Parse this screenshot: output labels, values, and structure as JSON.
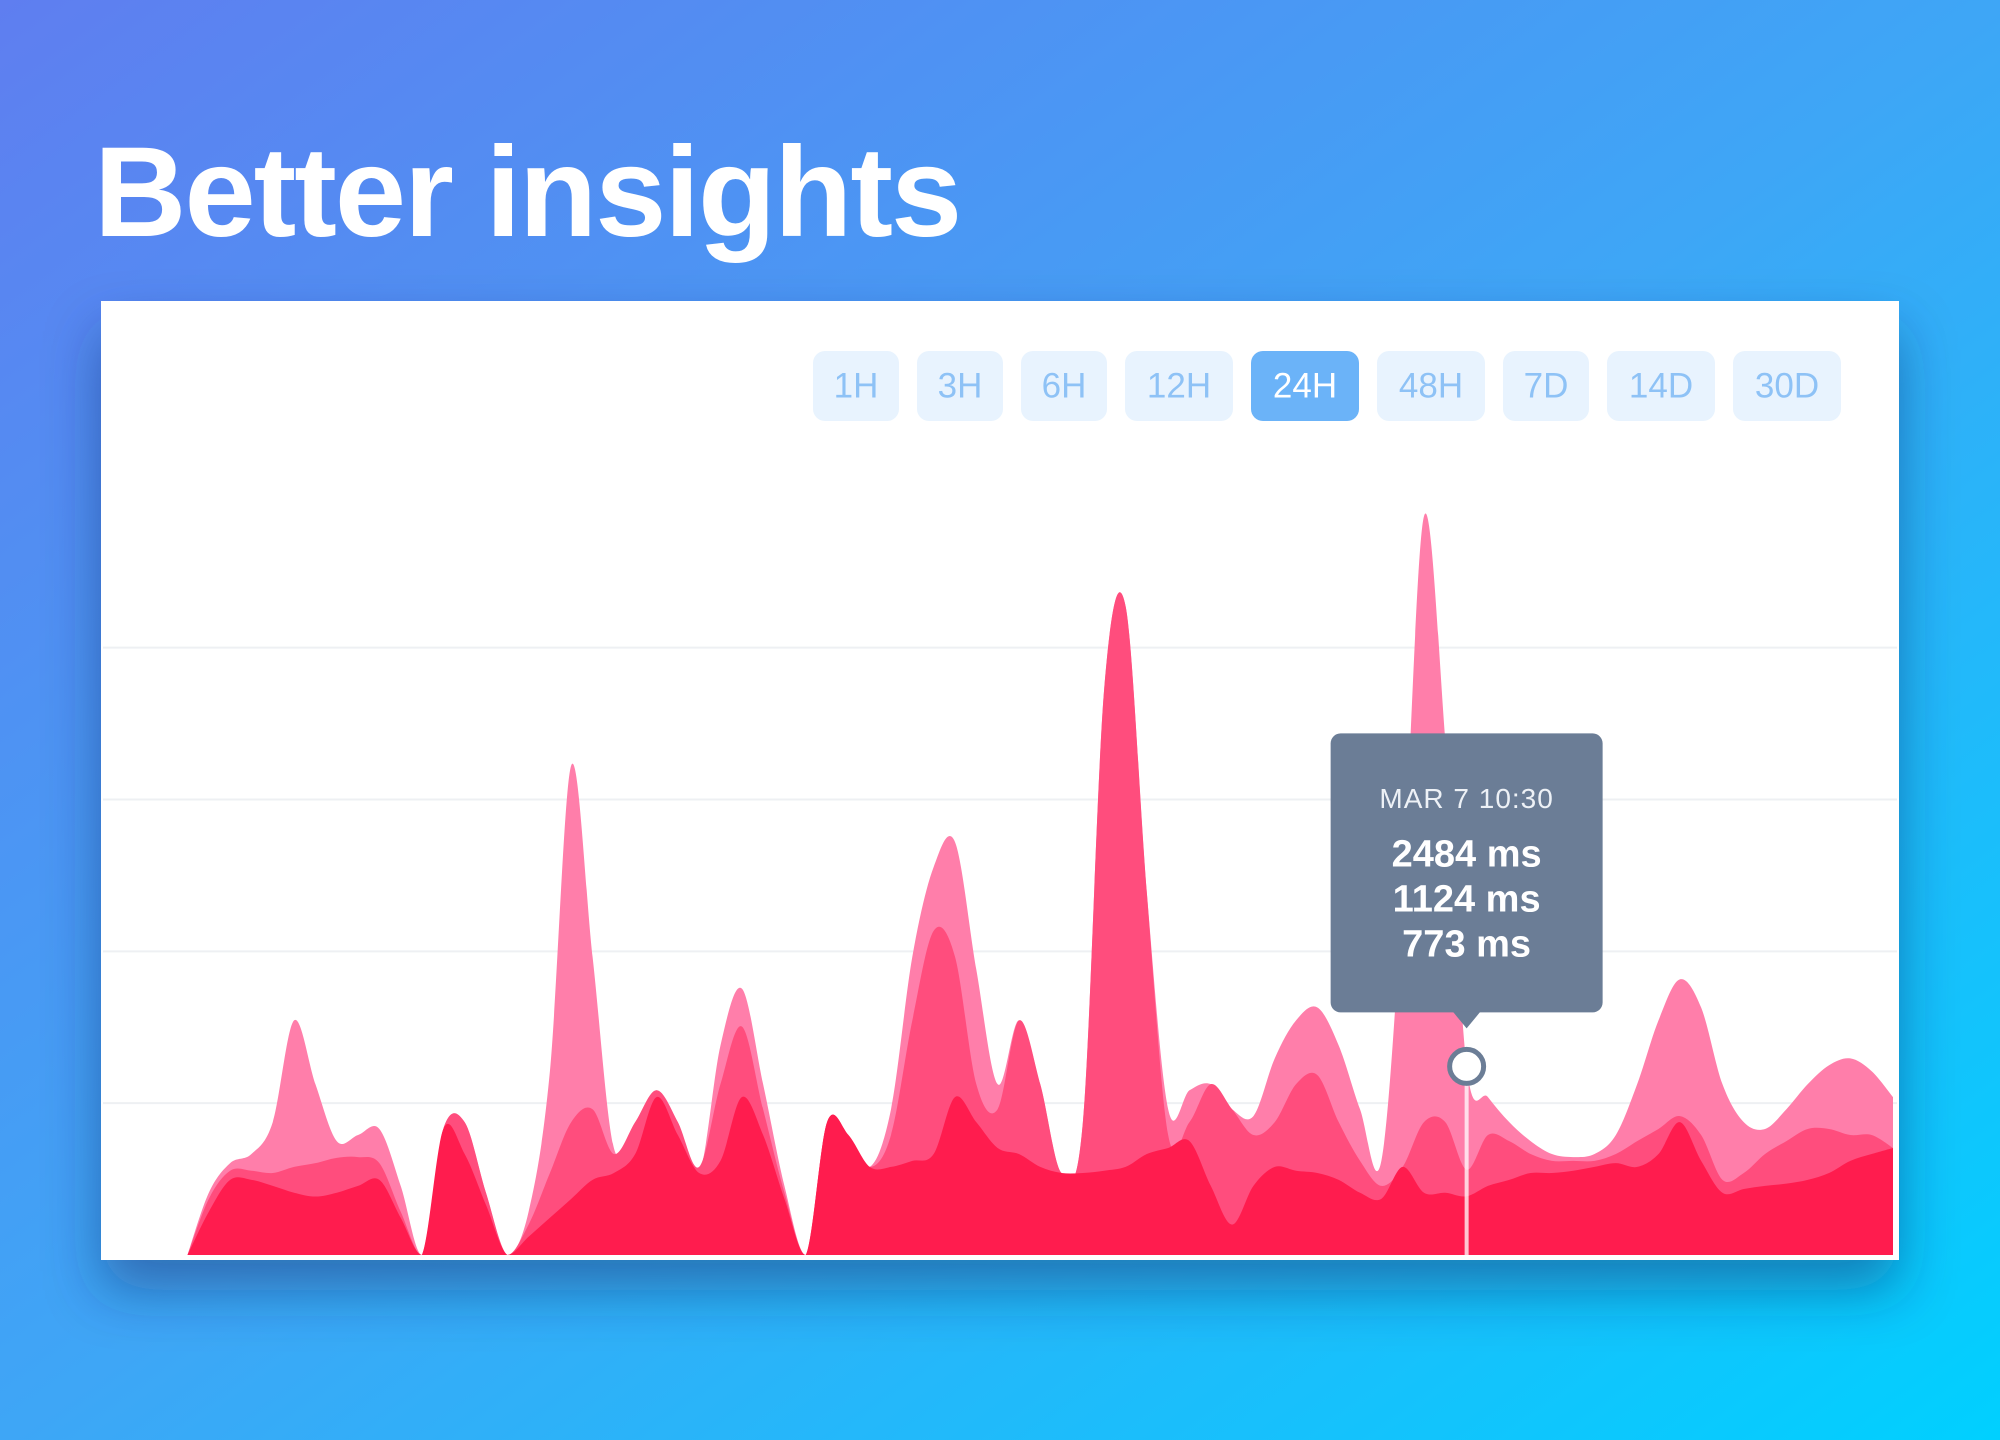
{
  "header": {
    "title": "Better insights"
  },
  "range_buttons": [
    {
      "label": "1H",
      "active": false
    },
    {
      "label": "3H",
      "active": false
    },
    {
      "label": "6H",
      "active": false
    },
    {
      "label": "12H",
      "active": false
    },
    {
      "label": "24H",
      "active": true
    },
    {
      "label": "48H",
      "active": false
    },
    {
      "label": "7D",
      "active": false
    },
    {
      "label": "14D",
      "active": false
    },
    {
      "label": "30D",
      "active": false
    }
  ],
  "chart_data": {
    "type": "area",
    "categories": [
      null,
      null,
      null,
      null,
      null,
      null,
      null,
      null,
      null,
      null,
      null,
      null,
      null,
      null,
      null,
      null,
      null,
      null,
      null,
      null,
      null,
      null,
      null,
      null,
      null,
      null,
      null,
      null,
      null,
      null,
      null,
      null,
      null,
      null,
      null,
      null,
      null,
      null,
      null,
      null,
      null,
      null,
      null,
      null,
      null,
      null,
      null,
      null,
      null,
      null,
      null,
      null,
      null,
      null,
      null,
      null,
      null,
      null,
      null,
      null,
      "MAR 7 10:30",
      null,
      null,
      null,
      null,
      null,
      null,
      null,
      null,
      null,
      null,
      null,
      null,
      null,
      null,
      null,
      null,
      null,
      null,
      null,
      null
    ],
    "ylim": [
      0,
      10000
    ],
    "yticks": [
      2000,
      4000,
      6000,
      8000
    ],
    "grid": true,
    "series": [
      {
        "color": "#ff7eaa",
        "values": [
          0,
          820,
          1210,
          1330,
          1750,
          3090,
          2250,
          1500,
          1580,
          1660,
          910,
          0,
          1660,
          1750,
          820,
          0,
          570,
          2420,
          6450,
          3930,
          1410,
          1750,
          2170,
          1750,
          1080,
          2760,
          3510,
          2250,
          910,
          0,
          1750,
          1580,
          1160,
          1920,
          3930,
          5110,
          5440,
          3760,
          2250,
          3090,
          2250,
          1080,
          1750,
          7460,
          8550,
          4770,
          1920,
          2170,
          2250,
          1920,
          1830,
          2590,
          3090,
          3260,
          2760,
          1920,
          1240,
          4770,
          9730,
          6790,
          2484,
          2080,
          1750,
          1500,
          1330,
          1290,
          1330,
          1580,
          2250,
          3090,
          3630,
          3260,
          2250,
          1750,
          1660,
          1920,
          2250,
          2500,
          2590,
          2420,
          2080
        ],
        "value_labels": [
          null,
          null,
          null,
          null,
          null,
          null,
          null,
          null,
          null,
          null,
          null,
          null,
          null,
          null,
          null,
          null,
          null,
          null,
          null,
          null,
          null,
          null,
          null,
          null,
          null,
          null,
          null,
          null,
          null,
          null,
          null,
          null,
          null,
          null,
          null,
          null,
          null,
          null,
          null,
          null,
          null,
          null,
          null,
          null,
          null,
          null,
          null,
          null,
          null,
          null,
          null,
          null,
          null,
          null,
          null,
          null,
          null,
          null,
          null,
          null,
          "2484 ms",
          null,
          null,
          null,
          null,
          null,
          null,
          null,
          null,
          null,
          null,
          null,
          null,
          null,
          null,
          null,
          null,
          null,
          null,
          null,
          null
        ]
      },
      {
        "color": "#ff4d7d",
        "values": [
          0,
          740,
          1110,
          1110,
          1080,
          1160,
          1210,
          1280,
          1290,
          1210,
          570,
          0,
          1660,
          1750,
          820,
          0,
          400,
          1080,
          1750,
          1920,
          1330,
          1750,
          2170,
          1750,
          1160,
          2250,
          3010,
          1920,
          820,
          0,
          1750,
          1580,
          1160,
          1580,
          3090,
          4270,
          3930,
          2250,
          1920,
          3090,
          2250,
          1080,
          1750,
          7460,
          8550,
          4770,
          1580,
          1750,
          2250,
          1920,
          1580,
          1750,
          2250,
          2370,
          1750,
          1240,
          910,
          1160,
          1750,
          1750,
          1124,
          1580,
          1500,
          1330,
          1240,
          1240,
          1240,
          1330,
          1500,
          1660,
          1830,
          1580,
          990,
          1080,
          1330,
          1500,
          1660,
          1660,
          1580,
          1580,
          1410
        ],
        "value_labels": [
          null,
          null,
          null,
          null,
          null,
          null,
          null,
          null,
          null,
          null,
          null,
          null,
          null,
          null,
          null,
          null,
          null,
          null,
          null,
          null,
          null,
          null,
          null,
          null,
          null,
          null,
          null,
          null,
          null,
          null,
          null,
          null,
          null,
          null,
          null,
          null,
          null,
          null,
          null,
          null,
          null,
          null,
          null,
          null,
          null,
          null,
          null,
          null,
          null,
          null,
          null,
          null,
          null,
          null,
          null,
          null,
          null,
          null,
          null,
          null,
          "1124 ms",
          null,
          null,
          null,
          null,
          null,
          null,
          null,
          null,
          null,
          null,
          null,
          null,
          null,
          null,
          null,
          null,
          null,
          null,
          null,
          null
        ]
      },
      {
        "color": "#ff1c4e",
        "values": [
          0,
          570,
          990,
          990,
          910,
          820,
          770,
          820,
          910,
          990,
          490,
          0,
          1660,
          1330,
          660,
          0,
          240,
          490,
          740,
          990,
          1080,
          1330,
          2080,
          1580,
          1080,
          1240,
          2080,
          1580,
          740,
          0,
          1750,
          1580,
          1160,
          1160,
          1240,
          1330,
          2080,
          1750,
          1410,
          1330,
          1160,
          1080,
          1080,
          1110,
          1160,
          1330,
          1410,
          1500,
          910,
          400,
          910,
          1160,
          1110,
          1080,
          990,
          820,
          740,
          1160,
          820,
          820,
          773,
          910,
          990,
          1080,
          1080,
          1110,
          1160,
          1210,
          1160,
          1330,
          1750,
          1240,
          820,
          870,
          910,
          940,
          990,
          1080,
          1240,
          1330,
          1410
        ],
        "value_labels": [
          null,
          null,
          null,
          null,
          null,
          null,
          null,
          null,
          null,
          null,
          null,
          null,
          null,
          null,
          null,
          null,
          null,
          null,
          null,
          null,
          null,
          null,
          null,
          null,
          null,
          null,
          null,
          null,
          null,
          null,
          null,
          null,
          null,
          null,
          null,
          null,
          null,
          null,
          null,
          null,
          null,
          null,
          null,
          null,
          null,
          null,
          null,
          null,
          null,
          null,
          null,
          null,
          null,
          null,
          null,
          null,
          null,
          null,
          null,
          null,
          "773 ms",
          null,
          null,
          null,
          null,
          null,
          null,
          null,
          null,
          null,
          null,
          null,
          null,
          null,
          null,
          null,
          null,
          null,
          null,
          null,
          null
        ]
      }
    ]
  }
}
